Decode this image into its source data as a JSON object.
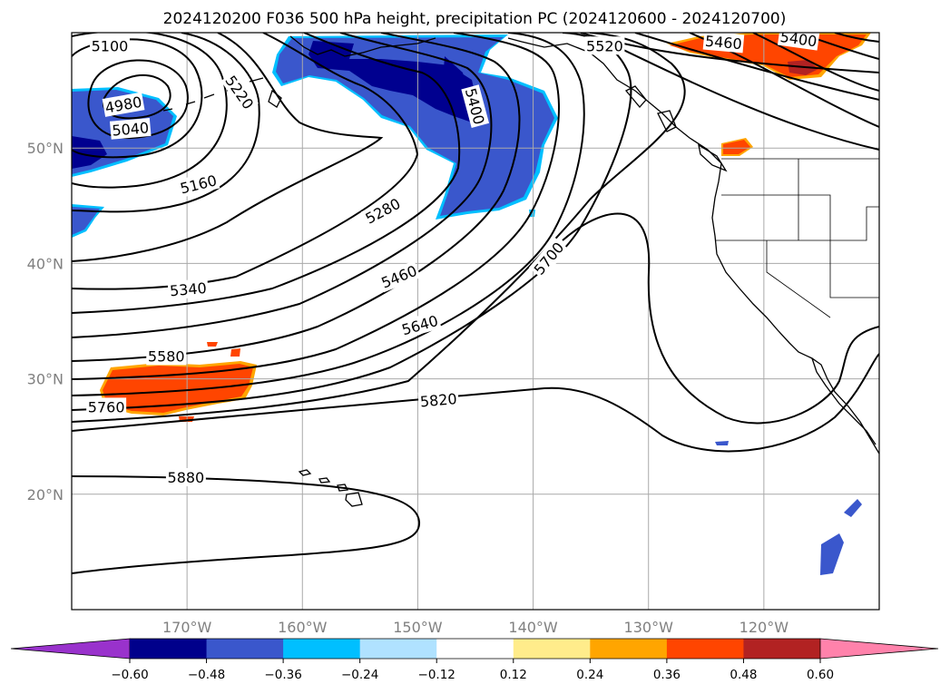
{
  "title": "2024120200 F036 500 hPa height, precipitation PC (2024120600 - 2024120700)",
  "map": {
    "lon_range": [
      -180,
      -110
    ],
    "lat_range": [
      10,
      60
    ],
    "gridlines": true,
    "lat_ticks": [
      {
        "value": 20,
        "label": "20°N"
      },
      {
        "value": 30,
        "label": "30°N"
      },
      {
        "value": 40,
        "label": "40°N"
      },
      {
        "value": 50,
        "label": "50°N"
      }
    ],
    "lon_ticks": [
      {
        "value": -170,
        "label": "170°W"
      },
      {
        "value": -160,
        "label": "160°W"
      },
      {
        "value": -150,
        "label": "150°W"
      },
      {
        "value": -140,
        "label": "140°W"
      },
      {
        "value": -130,
        "label": "130°W"
      },
      {
        "value": -120,
        "label": "120°W"
      }
    ],
    "land_color": "#ffffff",
    "coastline_color": "#000000"
  },
  "contour_labels": [
    {
      "text": "5100",
      "lon": -176.7,
      "lat": 58.8,
      "rot": 0
    },
    {
      "text": "4980",
      "lon": -175.5,
      "lat": 53.7,
      "rot": -10
    },
    {
      "text": "5040",
      "lon": -174.9,
      "lat": 51.6,
      "rot": -5
    },
    {
      "text": "5220",
      "lon": -165.5,
      "lat": 54.8,
      "rot": 55
    },
    {
      "text": "5160",
      "lon": -169.0,
      "lat": 46.8,
      "rot": -14
    },
    {
      "text": "5280",
      "lon": -153.0,
      "lat": 44.5,
      "rot": -28
    },
    {
      "text": "5400",
      "lon": -145.1,
      "lat": 53.6,
      "rot": 75
    },
    {
      "text": "5520",
      "lon": -133.8,
      "lat": 58.8,
      "rot": 0
    },
    {
      "text": "5460",
      "lon": -123.5,
      "lat": 59.1,
      "rot": 5
    },
    {
      "text": "5400",
      "lon": -117.0,
      "lat": 59.4,
      "rot": 8
    },
    {
      "text": "5340",
      "lon": -169.9,
      "lat": 37.7,
      "rot": -5
    },
    {
      "text": "5460",
      "lon": -151.6,
      "lat": 38.8,
      "rot": -22
    },
    {
      "text": "5700",
      "lon": -138.6,
      "lat": 40.4,
      "rot": -50
    },
    {
      "text": "5640",
      "lon": -149.8,
      "lat": 34.6,
      "rot": -16
    },
    {
      "text": "5580",
      "lon": -171.8,
      "lat": 31.9,
      "rot": 0
    },
    {
      "text": "5760",
      "lon": -177.0,
      "lat": 27.5,
      "rot": 0
    },
    {
      "text": "5820",
      "lon": -148.2,
      "lat": 28.1,
      "rot": -5
    },
    {
      "text": "5880",
      "lon": -170.1,
      "lat": 21.4,
      "rot": 0
    }
  ],
  "precip_regions": [
    {
      "level": "negative-moderate",
      "color": "#3a57cc",
      "desc": "Gulf of Alaska band"
    },
    {
      "level": "negative-strong",
      "color": "#00008f",
      "desc": "Gulf of Alaska core"
    },
    {
      "level": "negative-moderate",
      "color": "#3a57cc",
      "desc": "Bering Sea"
    },
    {
      "level": "positive-moderate",
      "color": "#ff4500",
      "desc": "Central Pacific"
    },
    {
      "level": "positive-moderate",
      "color": "#ff4500",
      "desc": "Western Canada"
    },
    {
      "level": "negative-moderate",
      "color": "#3a57cc",
      "desc": "East Pacific"
    }
  ],
  "colorbar": {
    "colors": [
      "#9932cc",
      "#00008b",
      "#3a57cc",
      "#00bfff",
      "#b0e2ff",
      "#ffffff",
      "#ffec8b",
      "#ffa500",
      "#ff4500",
      "#b22222",
      "#ff82ab"
    ],
    "ticks": [
      "−0.60",
      "−0.48",
      "−0.36",
      "−0.24",
      "−0.12",
      "0.12",
      "0.24",
      "0.36",
      "0.48",
      "0.60"
    ],
    "extend": "both"
  }
}
